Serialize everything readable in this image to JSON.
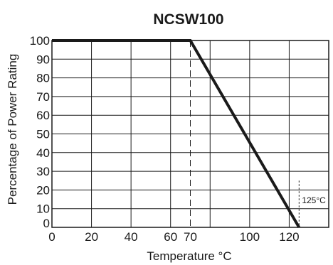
{
  "chart_data": {
    "type": "line",
    "title": "NCSW100",
    "xlabel": "Temperature °C",
    "ylabel": "Percentage of Power Rating",
    "xlim": [
      0,
      140
    ],
    "ylim": [
      0,
      100
    ],
    "x_ticks": [
      0,
      20,
      40,
      60,
      70,
      100,
      120
    ],
    "x_tick_labels": [
      "0",
      "20",
      "40",
      "60",
      "70",
      "100",
      "120"
    ],
    "x_gridlines": [
      0,
      20,
      40,
      60,
      80,
      100,
      120,
      140
    ],
    "y_ticks": [
      0,
      10,
      20,
      30,
      40,
      50,
      60,
      70,
      80,
      90,
      100
    ],
    "y_tick_labels": [
      "0",
      "10",
      "20",
      "30",
      "40",
      "50",
      "60",
      "70",
      "80",
      "90",
      "100"
    ],
    "grid": true,
    "series": [
      {
        "x": [
          0,
          70,
          125
        ],
        "y": [
          100,
          100,
          0
        ]
      }
    ],
    "reference_lines": [
      {
        "x": 70,
        "style": "dashed"
      },
      {
        "x": 125,
        "style": "dotted",
        "label": "125°C"
      }
    ]
  },
  "colors": {
    "line": "#1a1a1a",
    "background": "#ffffff"
  }
}
